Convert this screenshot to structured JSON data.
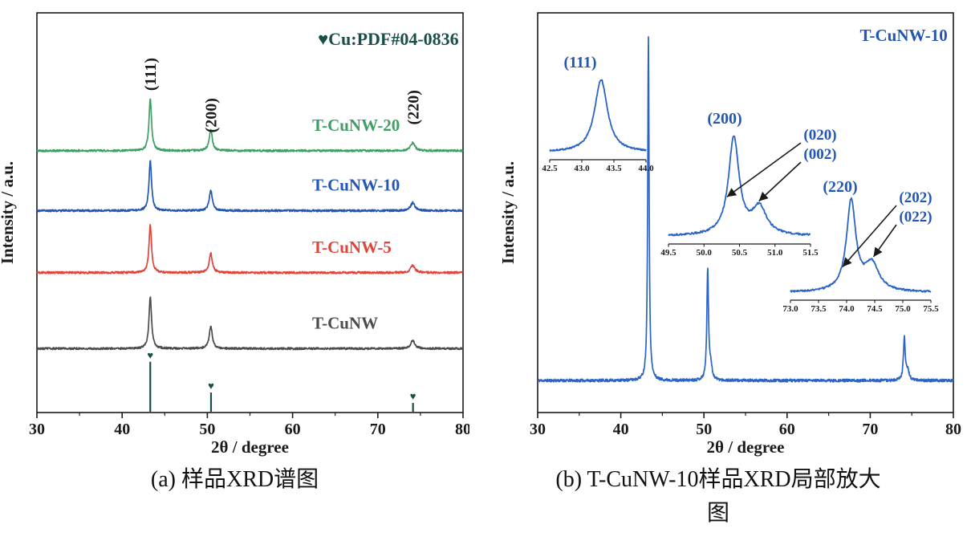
{
  "captions": {
    "a": "(a) 样品XRD谱图",
    "b_line1": "(b) T-CuNW-10样品XRD局部放大",
    "b_line2": "图"
  },
  "colors": {
    "axis": "#1a1a1a",
    "teal": "#1a4f49",
    "blue_b": "#2a64c5"
  },
  "chart_data": [
    {
      "id": "panel_a",
      "type": "line",
      "title": "",
      "xlabel": "2θ / degree",
      "ylabel": "Intensity / a.u.",
      "xlim": [
        30,
        80
      ],
      "ylim": [
        0,
        10
      ],
      "grid": false,
      "xticks": [
        30,
        40,
        50,
        60,
        70,
        80
      ],
      "xtick_labels": [
        "30",
        "40",
        "50",
        "60",
        "70",
        "80"
      ],
      "minor_tick_step": 5,
      "legend": {
        "text": "♥Cu:PDF#04-0836",
        "color": "#1a4f49",
        "x": 79.5,
        "y": 9.2,
        "position": "top-right"
      },
      "peak_labels": [
        {
          "text": "(111)",
          "x": 43.3,
          "y": 8.05
        },
        {
          "text": "(200)",
          "x": 50.4,
          "y": 7.0
        },
        {
          "text": "(220)",
          "x": 74.1,
          "y": 7.2
        }
      ],
      "series": [
        {
          "name": "T-CuNW-20",
          "color": "#3f9e63",
          "baseline": 6.55,
          "noise": 0.05,
          "label_x": 62.3,
          "label_y": 7.05,
          "peaks": [
            {
              "center": 43.3,
              "height": 1.3,
              "width": 0.18
            },
            {
              "center": 50.4,
              "height": 0.52,
              "width": 0.22
            },
            {
              "center": 74.1,
              "height": 0.2,
              "width": 0.3
            }
          ]
        },
        {
          "name": "T-CuNW-10",
          "color": "#2456b4",
          "baseline": 5.05,
          "noise": 0.05,
          "label_x": 62.3,
          "label_y": 5.55,
          "peaks": [
            {
              "center": 43.3,
              "height": 1.25,
              "width": 0.18
            },
            {
              "center": 50.4,
              "height": 0.5,
              "width": 0.22
            },
            {
              "center": 74.1,
              "height": 0.2,
              "width": 0.3
            }
          ]
        },
        {
          "name": "T-CuNW-5",
          "color": "#e0443a",
          "baseline": 3.5,
          "noise": 0.05,
          "label_x": 62.3,
          "label_y": 4.0,
          "peaks": [
            {
              "center": 43.3,
              "height": 1.2,
              "width": 0.18
            },
            {
              "center": 50.4,
              "height": 0.48,
              "width": 0.22
            },
            {
              "center": 74.1,
              "height": 0.18,
              "width": 0.3
            }
          ]
        },
        {
          "name": "T-CuNW",
          "color": "#4c4c4a",
          "baseline": 1.6,
          "noise": 0.05,
          "label_x": 62.3,
          "label_y": 2.1,
          "peaks": [
            {
              "center": 43.3,
              "height": 1.3,
              "width": 0.18
            },
            {
              "center": 50.4,
              "height": 0.55,
              "width": 0.22
            },
            {
              "center": 74.1,
              "height": 0.2,
              "width": 0.3
            }
          ]
        }
      ],
      "reference": {
        "label": "Cu:PDF#04-0836",
        "marker": "♥",
        "color": "#1a4f49",
        "lines": [
          {
            "x": 43.3,
            "height": 1.27
          },
          {
            "x": 50.43,
            "height": 0.5
          },
          {
            "x": 74.13,
            "height": 0.24
          }
        ]
      }
    },
    {
      "id": "panel_b",
      "type": "line",
      "title": "",
      "xlabel": "2θ / degree",
      "ylabel": "Intensity / a.u.",
      "xlim": [
        30,
        80
      ],
      "ylim": [
        0,
        10
      ],
      "grid": false,
      "xticks": [
        30,
        40,
        50,
        60,
        70,
        80
      ],
      "xtick_labels": [
        "30",
        "40",
        "50",
        "60",
        "70",
        "80"
      ],
      "minor_tick_step": 5,
      "sample_label": {
        "text": "T-CuNW-10",
        "color": "#2456b4",
        "x": 79.3,
        "y": 9.3,
        "position": "top-right"
      },
      "series": [
        {
          "name": "T-CuNW-10",
          "color": "#2a64c5",
          "baseline": 0.8,
          "noise": 0.07,
          "peaks": [
            {
              "center": 43.32,
              "height": 8.6,
              "width": 0.1
            },
            {
              "center": 50.45,
              "height": 2.75,
              "width": 0.12
            },
            {
              "center": 50.8,
              "height": 0.35,
              "width": 0.18
            },
            {
              "center": 74.1,
              "height": 1.05,
              "width": 0.13
            },
            {
              "center": 74.5,
              "height": 0.25,
              "width": 0.2
            }
          ]
        }
      ],
      "insets": [
        {
          "peak_label": "(111)",
          "xlim": [
            42.5,
            44.0
          ],
          "xticks": [
            42.5,
            43.0,
            43.5,
            44.0
          ],
          "xtick_labels": [
            "42.5",
            "43.0",
            "43.5",
            "44.0"
          ],
          "peaks": [
            {
              "center": 43.3,
              "height": 1.0,
              "width": 0.12
            }
          ],
          "arrows": []
        },
        {
          "peak_label": "(200)",
          "xlim": [
            49.5,
            51.5
          ],
          "xticks": [
            49.5,
            50.0,
            50.5,
            51.0,
            51.5
          ],
          "xtick_labels": [
            "49.5",
            "50.0",
            "50.5",
            "51.0",
            "51.5"
          ],
          "peaks": [
            {
              "center": 50.42,
              "height": 1.0,
              "width": 0.09
            },
            {
              "center": 50.78,
              "height": 0.28,
              "width": 0.12
            }
          ],
          "arrows": [
            {
              "label": "(020)",
              "target_x": 50.3
            },
            {
              "label": "(002)",
              "target_x": 50.75
            }
          ]
        },
        {
          "peak_label": "(220)",
          "xlim": [
            73.0,
            75.5
          ],
          "xticks": [
            73.0,
            73.5,
            74.0,
            74.5,
            75.0,
            75.5
          ],
          "xtick_labels": [
            "73.0",
            "73.5",
            "74.0",
            "74.5",
            "75.0",
            "75.5"
          ],
          "peaks": [
            {
              "center": 74.08,
              "height": 1.0,
              "width": 0.1
            },
            {
              "center": 74.45,
              "height": 0.3,
              "width": 0.15
            }
          ],
          "arrows": [
            {
              "label": "(202)",
              "target_x": 73.9
            },
            {
              "label": "(022)",
              "target_x": 74.45
            }
          ]
        }
      ]
    }
  ]
}
